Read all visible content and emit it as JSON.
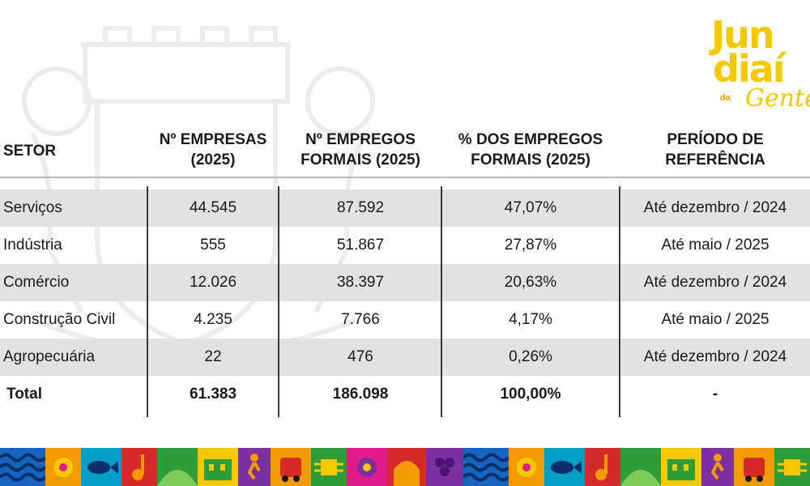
{
  "logo": {
    "line1": "Jun",
    "line2": "diaí",
    "small_prefix": "da",
    "script": "Gente"
  },
  "table": {
    "headers": [
      {
        "line1": "SETOR",
        "line2": ""
      },
      {
        "line1": "Nº EMPRESAS",
        "line2": "(2025)"
      },
      {
        "line1": "Nº EMPREGOS",
        "line2": "FORMAIS (2025)"
      },
      {
        "line1": "% DOS EMPREGOS",
        "line2": "FORMAIS (2025)"
      },
      {
        "line1": "PERÍODO DE",
        "line2": "REFERÊNCIA"
      }
    ],
    "rows": [
      {
        "setor": "Serviços",
        "empresas": "44.545",
        "empregos": "87.592",
        "percent": "47,07%",
        "periodo": "Até dezembro / 2024"
      },
      {
        "setor": "Indústria",
        "empresas": "555",
        "empregos": "51.867",
        "percent": "27,87%",
        "periodo": "Até maio / 2025"
      },
      {
        "setor": "Comércio",
        "empresas": "12.026",
        "empregos": "38.397",
        "percent": "20,63%",
        "periodo": "Até dezembro / 2024"
      },
      {
        "setor": "Construção Civil",
        "empresas": "4.235",
        "empregos": "7.766",
        "percent": "4,17%",
        "periodo": "Até maio / 2025"
      },
      {
        "setor": "Agropecuária",
        "empresas": "22",
        "empregos": "476",
        "percent": "0,26%",
        "periodo": "Até dezembro / 2024"
      },
      {
        "setor": "Total",
        "empresas": "61.383",
        "empregos": "186.098",
        "percent": "100,00%",
        "periodo": "-"
      }
    ]
  },
  "colors": {
    "logo_yellow": "#f5c800",
    "logo_pink": "#e21b8c",
    "row_shade": "#e2e2e2",
    "strip": [
      "#1565c0",
      "#f39a00",
      "#e21b8c",
      "#2e9d3a",
      "#7b2fa0",
      "#f5c800",
      "#00a0c6",
      "#d62a2a"
    ]
  }
}
